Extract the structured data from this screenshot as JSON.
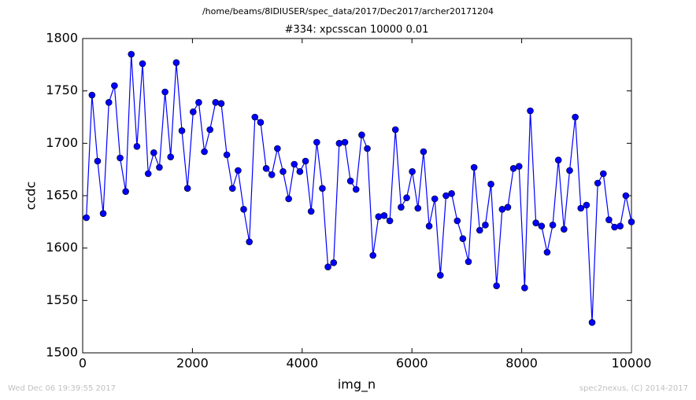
{
  "chart_data": {
    "type": "line",
    "suptitle": "/home/beams/8IDIUSER/spec_data/2017/Dec2017/archer20171204",
    "title": "#334: xpcsscan 10000 0.01",
    "xlabel": "img_n",
    "ylabel": "ccdc",
    "x": [
      67,
      170,
      272,
      374,
      477,
      579,
      682,
      784,
      886,
      989,
      1091,
      1194,
      1296,
      1398,
      1501,
      1603,
      1706,
      1808,
      1910,
      2013,
      2115,
      2218,
      2320,
      2422,
      2525,
      2627,
      2730,
      2832,
      2934,
      3037,
      3139,
      3242,
      3344,
      3446,
      3549,
      3651,
      3754,
      3856,
      3958,
      4061,
      4163,
      4266,
      4368,
      4470,
      4573,
      4675,
      4778,
      4880,
      4982,
      5085,
      5187,
      5290,
      5392,
      5494,
      5597,
      5699,
      5802,
      5904,
      6006,
      6109,
      6211,
      6314,
      6416,
      6518,
      6621,
      6723,
      6826,
      6928,
      7030,
      7133,
      7235,
      7338,
      7440,
      7542,
      7645,
      7747,
      7850,
      7952,
      8054,
      8157,
      8259,
      8362,
      8464,
      8566,
      8669,
      8771,
      8874,
      8976,
      9078,
      9181,
      9283,
      9386,
      9488,
      9590,
      9693,
      9795,
      9898,
      10000
    ],
    "series": [
      {
        "color": "#0000ff",
        "values": [
          1629,
          1746,
          1683,
          1633,
          1739,
          1755,
          1686,
          1654,
          1785,
          1697,
          1776,
          1671,
          1691,
          1677,
          1749,
          1687,
          1777,
          1712,
          1657,
          1730,
          1739,
          1692,
          1713,
          1739,
          1738,
          1689,
          1657,
          1674,
          1637,
          1606,
          1725,
          1720,
          1676,
          1670,
          1695,
          1673,
          1647,
          1680,
          1673,
          1683,
          1635,
          1701,
          1657,
          1582,
          1586,
          1700,
          1701,
          1664,
          1656,
          1708,
          1695,
          1593,
          1630,
          1631,
          1626,
          1713,
          1639,
          1648,
          1673,
          1638,
          1692,
          1621,
          1647,
          1574,
          1650,
          1652,
          1626,
          1609,
          1587,
          1677,
          1617,
          1622,
          1661,
          1564,
          1637,
          1639,
          1676,
          1678,
          1562,
          1731,
          1624,
          1621,
          1596,
          1622,
          1684,
          1618,
          1674,
          1725,
          1638,
          1641,
          1529,
          1662,
          1671,
          1627,
          1620,
          1621,
          1650,
          1625
        ]
      }
    ],
    "xlim": [
      0,
      10000
    ],
    "xticks": [
      0,
      2000,
      4000,
      6000,
      8000,
      10000
    ],
    "ylim": [
      1500,
      1800
    ],
    "yticks": [
      1500,
      1550,
      1600,
      1650,
      1700,
      1750,
      1800
    ],
    "grid": false
  },
  "footer": {
    "left": "Wed Dec 06 19:39:55 2017",
    "right": "spec2nexus, (C) 2014-2017"
  }
}
